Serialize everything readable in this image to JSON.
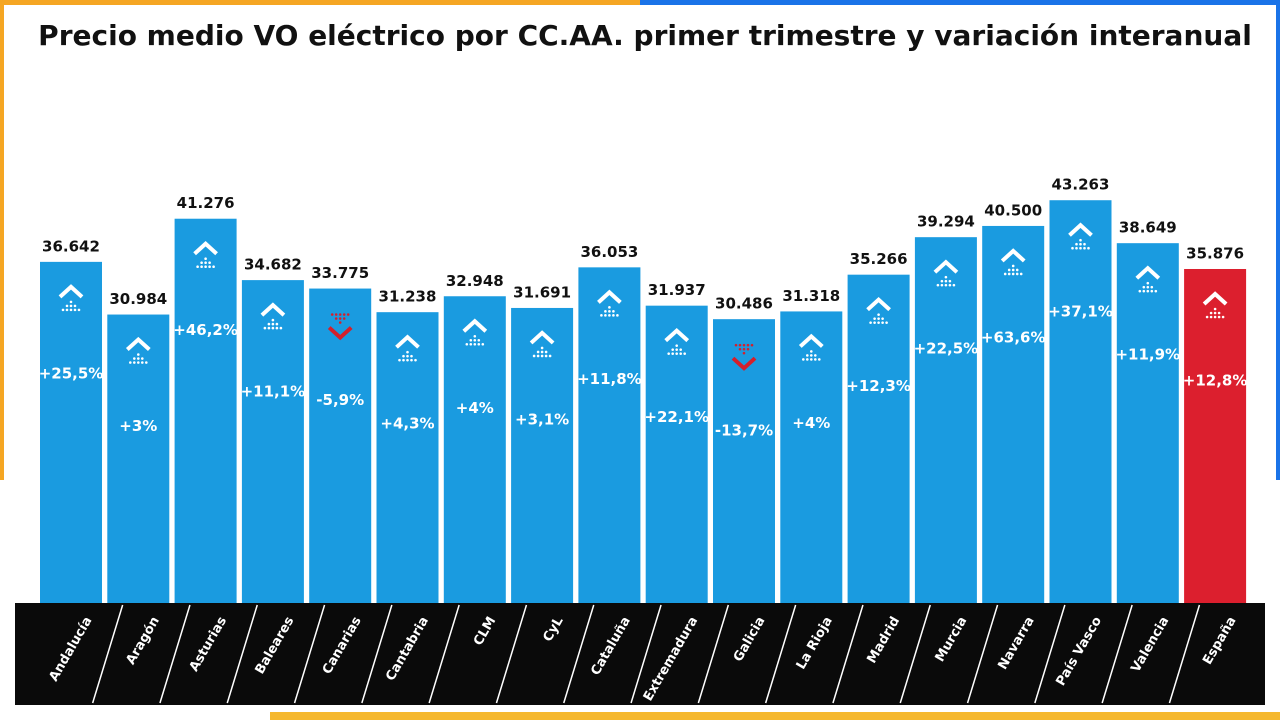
{
  "chart_data": {
    "type": "bar",
    "title": "Precio medio VO eléctrico por CC.AA. primer trimestre y variación interanual",
    "categories": [
      "Andalucía",
      "Aragón",
      "Asturias",
      "Baleares",
      "Canarias",
      "Cantabria",
      "CLM",
      "CyL",
      "Cataluña",
      "Extremadura",
      "Galicia",
      "La Rioja",
      "Madrid",
      "Murcia",
      "Navarra",
      "País Vasco",
      "Valencia",
      "España"
    ],
    "series": [
      {
        "name": "Precio medio",
        "colors": [
          "#1a9be0",
          "#1a9be0",
          "#1a9be0",
          "#1a9be0",
          "#1a9be0",
          "#1a9be0",
          "#1a9be0",
          "#1a9be0",
          "#1a9be0",
          "#1a9be0",
          "#1a9be0",
          "#1a9be0",
          "#1a9be0",
          "#1a9be0",
          "#1a9be0",
          "#1a9be0",
          "#1a9be0",
          "#dc1f2e"
        ],
        "values": [
          36642,
          30984,
          41276,
          34682,
          33775,
          31238,
          32948,
          31691,
          36053,
          31937,
          30486,
          31318,
          35266,
          39294,
          40500,
          43263,
          38649,
          35876
        ],
        "value_labels": [
          "36.642",
          "30.984",
          "41.276",
          "34.682",
          "33.775",
          "31.238",
          "32.948",
          "31.691",
          "36.053",
          "31.937",
          "30.486",
          "31.318",
          "35.266",
          "39.294",
          "40.500",
          "43.263",
          "38.649",
          "35.876"
        ]
      },
      {
        "name": "Variación interanual",
        "values": [
          25.5,
          3,
          46.2,
          11.1,
          -5.9,
          4.3,
          4,
          3.1,
          11.8,
          22.1,
          -13.7,
          4,
          12.3,
          22.5,
          63.6,
          37.1,
          11.9,
          12.8
        ],
        "value_labels": [
          "+25,5%",
          "+3%",
          "+46,2%",
          "+11,1%",
          "-5,9%",
          "+4,3%",
          "+4%",
          "+3,1%",
          "+11,8%",
          "+22,1%",
          "-13,7%",
          "+4%",
          "+12,3%",
          "+22,5%",
          "+63,6%",
          "+37,1%",
          "+11,9%",
          "+12,8%"
        ]
      }
    ]
  }
}
